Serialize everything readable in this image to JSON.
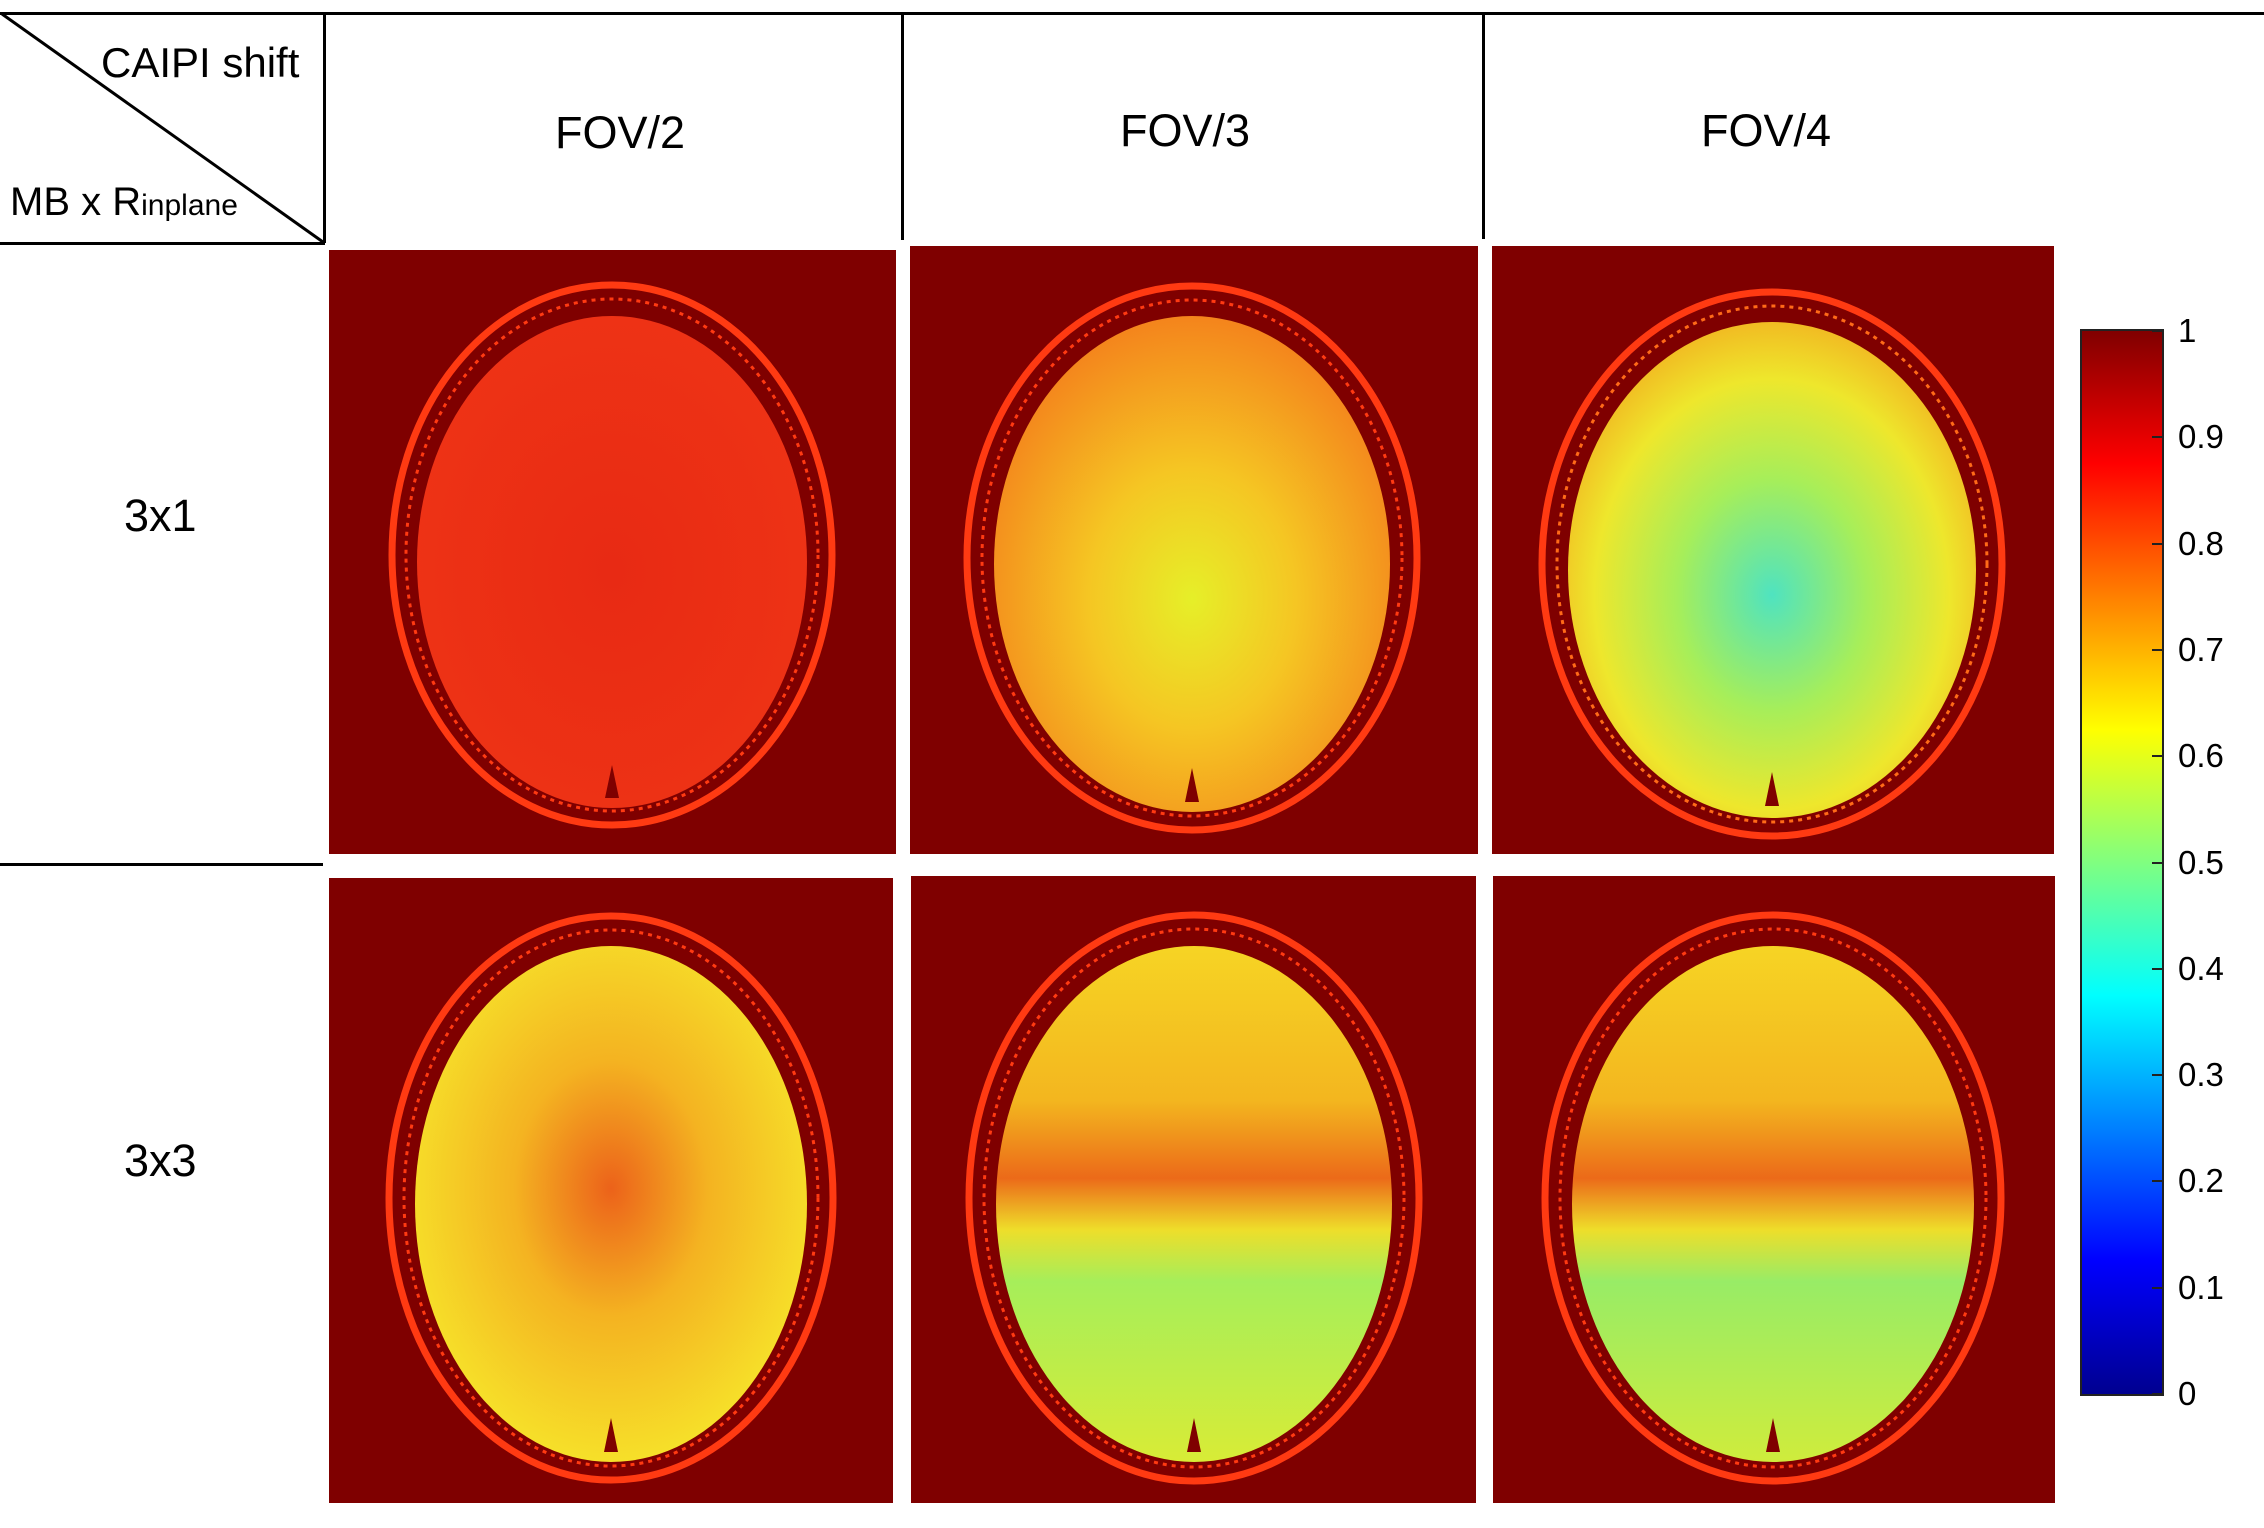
{
  "corner": {
    "top": "CAIPI shift",
    "bottom_main": "MB x R",
    "bottom_sub": "inplane"
  },
  "columns": [
    "FOV/2",
    "FOV/3",
    "FOV/4"
  ],
  "rows": [
    "3x1",
    "3x3"
  ],
  "colorbar": {
    "colormap": "jet",
    "ticks": [
      "1",
      "0.9",
      "0.8",
      "0.7",
      "0.6",
      "0.5",
      "0.4",
      "0.3",
      "0.2",
      "0.1",
      "0"
    ]
  },
  "colors": {
    "background_dark_red": "#7f0000",
    "skull_ring": "#ff3a12",
    "row1": {
      "fov2": {
        "center": "#e82a14",
        "edge": "#ee3315"
      },
      "fov3": {
        "center": "#e6ef28",
        "edge": "#f4821c"
      },
      "fov4": {
        "center": "#4fe3c0",
        "edge": "#f2b020"
      }
    },
    "row2": {
      "fov2": {
        "center": "#ec621a",
        "edge": "#f6e32a"
      },
      "fov3": {
        "top": "#f3b61f",
        "band": "#ec6a19",
        "bottom": "#a6ee5a"
      },
      "fov4": {
        "top": "#f3b61f",
        "band": "#ec6a19",
        "bottom": "#98ec66"
      }
    }
  }
}
